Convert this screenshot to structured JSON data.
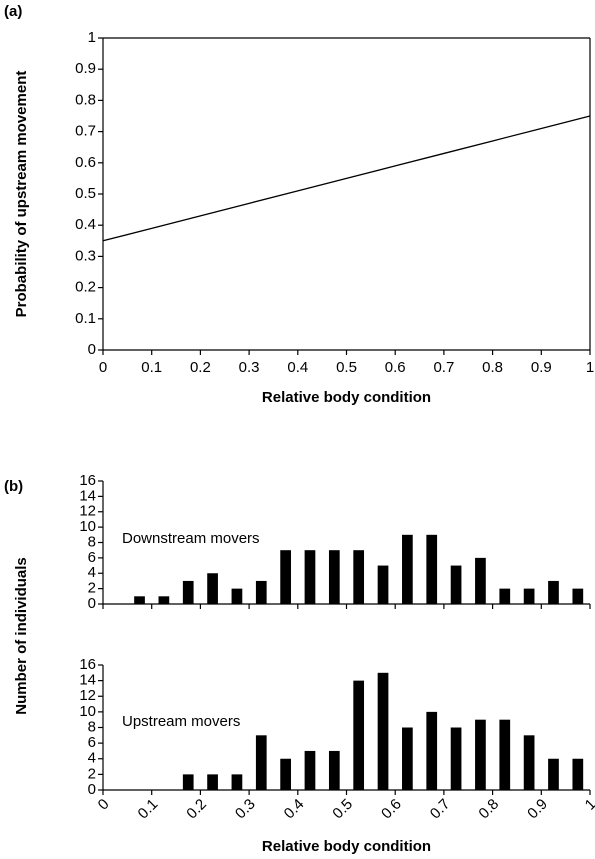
{
  "chart_data": [
    {
      "type": "line",
      "panel_label": "(a)",
      "ylabel": "Probability of upstream movement",
      "xlabel": "Relative body condition",
      "x": [
        0,
        0.1,
        0.2,
        0.3,
        0.4,
        0.5,
        0.6,
        0.7,
        0.8,
        0.9,
        1
      ],
      "values": [
        0.35,
        0.39,
        0.43,
        0.47,
        0.51,
        0.55,
        0.59,
        0.63,
        0.67,
        0.71,
        0.75
      ],
      "color": "#000000",
      "frame": true,
      "xlim": [
        0,
        1
      ],
      "xticks": [
        0,
        0.1,
        0.2,
        0.3,
        0.4,
        0.5,
        0.6,
        0.7,
        0.8,
        0.9,
        1
      ],
      "ylim": [
        0,
        1
      ],
      "yticks": [
        0,
        0.1,
        0.2,
        0.3,
        0.4,
        0.5,
        0.6,
        0.7,
        0.8,
        0.9,
        1
      ]
    },
    {
      "type": "bar",
      "panel_label": "(b)",
      "ylabel": "Number of individuals",
      "annotation": "Downstream movers",
      "x": [
        0.075,
        0.125,
        0.175,
        0.225,
        0.275,
        0.325,
        0.375,
        0.425,
        0.475,
        0.525,
        0.575,
        0.625,
        0.675,
        0.725,
        0.775,
        0.825,
        0.875,
        0.925,
        0.975
      ],
      "values": [
        1,
        1,
        3,
        4,
        2,
        3,
        7,
        7,
        7,
        7,
        5,
        9,
        9,
        5,
        6,
        2,
        2,
        3,
        2
      ],
      "color": "#000000",
      "frame": false,
      "xtick_labels": false,
      "xlim": [
        0,
        1
      ],
      "xticks": [
        0,
        0.1,
        0.2,
        0.3,
        0.4,
        0.5,
        0.6,
        0.7,
        0.8,
        0.9,
        1
      ],
      "ylim": [
        0,
        16
      ],
      "yticks": [
        0,
        2,
        4,
        6,
        8,
        10,
        12,
        14,
        16
      ]
    },
    {
      "type": "bar",
      "annotation": "Upstream movers",
      "xlabel": "Relative body condition",
      "x": [
        0.075,
        0.125,
        0.175,
        0.225,
        0.275,
        0.325,
        0.375,
        0.425,
        0.475,
        0.525,
        0.575,
        0.625,
        0.675,
        0.725,
        0.775,
        0.825,
        0.875,
        0.925,
        0.975
      ],
      "values": [
        0,
        0,
        2,
        2,
        2,
        7,
        4,
        5,
        5,
        14,
        15,
        8,
        10,
        8,
        9,
        9,
        7,
        4,
        4
      ],
      "color": "#000000",
      "frame": false,
      "xtick_labels": true,
      "xtick_rotation": -45,
      "xlim": [
        0,
        1
      ],
      "xticks": [
        0,
        0.1,
        0.2,
        0.3,
        0.4,
        0.5,
        0.6,
        0.7,
        0.8,
        0.9,
        1
      ],
      "ylim": [
        0,
        16
      ],
      "yticks": [
        0,
        2,
        4,
        6,
        8,
        10,
        12,
        14,
        16
      ]
    }
  ]
}
